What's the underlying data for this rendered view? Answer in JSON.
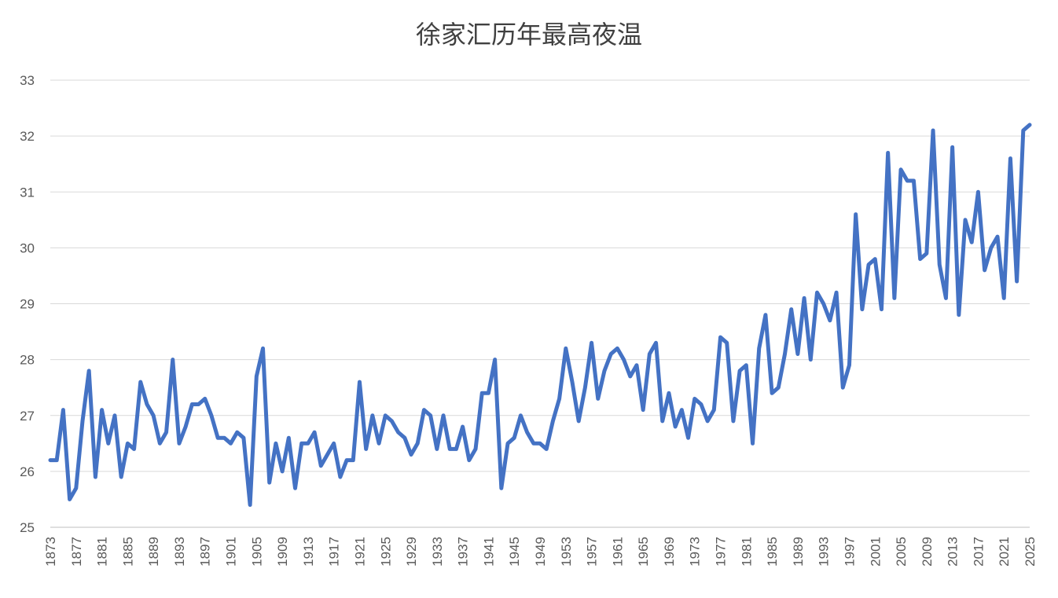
{
  "chart_data": {
    "type": "line",
    "title": "徐家汇历年最高夜温",
    "xlabel": "",
    "ylabel": "",
    "ylim": [
      25,
      33
    ],
    "yticks": [
      25,
      26,
      27,
      28,
      29,
      30,
      31,
      32,
      33
    ],
    "xlim": [
      1873,
      2025
    ],
    "xticks": [
      1873,
      1877,
      1881,
      1885,
      1889,
      1893,
      1897,
      1901,
      1905,
      1909,
      1913,
      1917,
      1921,
      1925,
      1929,
      1933,
      1937,
      1941,
      1945,
      1949,
      1953,
      1957,
      1961,
      1965,
      1969,
      1973,
      1977,
      1981,
      1985,
      1989,
      1993,
      1997,
      2001,
      2005,
      2009,
      2013,
      2017,
      2021,
      2025
    ],
    "grid": "horizontal",
    "legend": "none",
    "color": "#4472C4",
    "x_start": 1873,
    "series": [
      {
        "values": [
          26.2,
          26.2,
          27.1,
          25.5,
          25.7,
          26.9,
          27.8,
          25.9,
          27.1,
          26.5,
          27.0,
          25.9,
          26.5,
          26.4,
          27.6,
          27.2,
          27.0,
          26.5,
          26.7,
          28.0,
          26.5,
          26.8,
          27.2,
          27.2,
          27.3,
          27.0,
          26.6,
          26.6,
          26.5,
          26.7,
          26.6,
          25.4,
          27.7,
          28.2,
          25.8,
          26.5,
          26.0,
          26.6,
          25.7,
          26.5,
          26.5,
          26.7,
          26.1,
          26.3,
          26.5,
          25.9,
          26.2,
          26.2,
          27.6,
          26.4,
          27.0,
          26.5,
          27.0,
          26.9,
          26.7,
          26.6,
          26.3,
          26.5,
          27.1,
          27.0,
          26.4,
          27.0,
          26.4,
          26.4,
          26.8,
          26.2,
          26.4,
          27.4,
          27.4,
          28.0,
          25.7,
          26.5,
          26.6,
          27.0,
          26.7,
          26.5,
          26.5,
          26.4,
          26.9,
          27.3,
          28.2,
          27.6,
          26.9,
          27.5,
          28.3,
          27.3,
          27.8,
          28.1,
          28.2,
          28.0,
          27.7,
          27.9,
          27.1,
          28.1,
          28.3,
          26.9,
          27.4,
          26.8,
          27.1,
          26.6,
          27.3,
          27.2,
          26.9,
          27.1,
          28.4,
          28.3,
          26.9,
          27.8,
          27.9,
          26.5,
          28.2,
          28.8,
          27.4,
          27.5,
          28.1,
          28.9,
          28.1,
          29.1,
          28.0,
          29.2,
          29.0,
          28.7,
          29.2,
          27.5,
          27.9,
          30.6,
          28.9,
          29.7,
          29.8,
          28.9,
          31.7,
          29.1,
          31.4,
          31.2,
          31.2,
          29.8,
          29.9,
          32.1,
          29.7,
          29.1,
          31.8,
          28.8,
          30.5,
          30.1,
          31.0,
          29.6,
          30.0,
          30.2,
          29.1,
          31.6,
          29.4,
          32.1,
          32.2
        ]
      }
    ]
  }
}
